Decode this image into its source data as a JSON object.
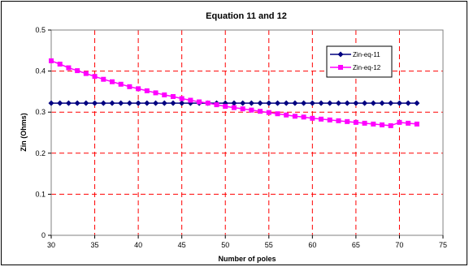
{
  "chart_data": {
    "type": "line",
    "title": "Equation 11 and 12",
    "xlabel": "Number of poles",
    "ylabel": "Zin (Ohms)",
    "xlim": [
      30,
      75
    ],
    "ylim": [
      0,
      0.5
    ],
    "xticks": [
      30,
      35,
      40,
      45,
      50,
      55,
      60,
      65,
      70,
      75
    ],
    "yticks": [
      0,
      0.1,
      0.2,
      0.3,
      0.4,
      0.5
    ],
    "grid": true,
    "grid_color": "#ff0000",
    "legend_position": "top-right",
    "x": [
      30,
      31,
      32,
      33,
      34,
      35,
      36,
      37,
      38,
      39,
      40,
      41,
      42,
      43,
      44,
      45,
      46,
      47,
      48,
      49,
      50,
      51,
      52,
      53,
      54,
      55,
      56,
      57,
      58,
      59,
      60,
      61,
      62,
      63,
      64,
      65,
      66,
      67,
      68,
      69,
      70,
      71,
      72
    ],
    "series": [
      {
        "name": "Zin-eq-11",
        "color": "#000080",
        "marker": "diamond",
        "values": [
          0.322,
          0.322,
          0.322,
          0.322,
          0.322,
          0.322,
          0.322,
          0.322,
          0.322,
          0.322,
          0.322,
          0.322,
          0.322,
          0.322,
          0.322,
          0.322,
          0.322,
          0.322,
          0.322,
          0.322,
          0.322,
          0.322,
          0.322,
          0.322,
          0.322,
          0.322,
          0.322,
          0.322,
          0.322,
          0.322,
          0.322,
          0.322,
          0.322,
          0.322,
          0.322,
          0.322,
          0.322,
          0.322,
          0.322,
          0.322,
          0.322,
          0.322,
          0.322
        ]
      },
      {
        "name": "Zin-eq-12",
        "color": "#ff00ff",
        "marker": "square",
        "values": [
          0.425,
          0.417,
          0.408,
          0.401,
          0.394,
          0.387,
          0.38,
          0.374,
          0.368,
          0.362,
          0.357,
          0.352,
          0.347,
          0.342,
          0.338,
          0.333,
          0.329,
          0.325,
          0.322,
          0.318,
          0.314,
          0.311,
          0.308,
          0.305,
          0.302,
          0.299,
          0.296,
          0.293,
          0.29,
          0.288,
          0.285,
          0.283,
          0.281,
          0.279,
          0.277,
          0.275,
          0.273,
          0.271,
          0.269,
          0.267,
          0.275,
          0.273,
          0.271
        ]
      }
    ]
  }
}
